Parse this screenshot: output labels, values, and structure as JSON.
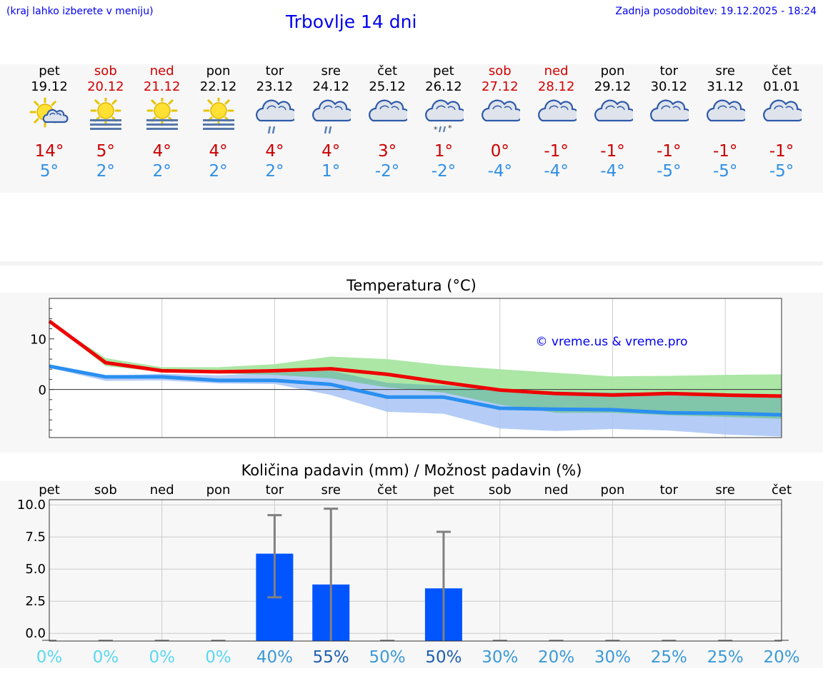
{
  "header": {
    "location_hint": "(kraj lahko izberete v meniju)",
    "title": "Trbovlje 14 dni",
    "updated": "Zadnja posodobitev: 19.12.2025 - 18:24"
  },
  "forecast": [
    {
      "day": "pet",
      "date": "19.12",
      "tmax": "14°",
      "tmin": "5°",
      "icon": "partly-sunny-icon",
      "weekend": false
    },
    {
      "day": "sob",
      "date": "20.12",
      "tmax": "5°",
      "tmin": "2°",
      "icon": "sun-fog-icon",
      "weekend": true
    },
    {
      "day": "ned",
      "date": "21.12",
      "tmax": "4°",
      "tmin": "2°",
      "icon": "sun-fog-icon",
      "weekend": true
    },
    {
      "day": "pon",
      "date": "22.12",
      "tmax": "4°",
      "tmin": "2°",
      "icon": "sun-fog-icon",
      "weekend": false
    },
    {
      "day": "tor",
      "date": "23.12",
      "tmax": "4°",
      "tmin": "2°",
      "icon": "cloud-rain-icon",
      "weekend": false
    },
    {
      "day": "sre",
      "date": "24.12",
      "tmax": "4°",
      "tmin": "1°",
      "icon": "cloud-rain-icon",
      "weekend": false
    },
    {
      "day": "čet",
      "date": "25.12",
      "tmax": "3°",
      "tmin": "-2°",
      "icon": "cloud-icon",
      "weekend": false
    },
    {
      "day": "pet",
      "date": "26.12",
      "tmax": "1°",
      "tmin": "-2°",
      "icon": "cloud-sleet-icon",
      "weekend": false
    },
    {
      "day": "sob",
      "date": "27.12",
      "tmax": "0°",
      "tmin": "-4°",
      "icon": "cloud-icon",
      "weekend": true
    },
    {
      "day": "ned",
      "date": "28.12",
      "tmax": "-1°",
      "tmin": "-4°",
      "icon": "cloud-icon",
      "weekend": true
    },
    {
      "day": "pon",
      "date": "29.12",
      "tmax": "-1°",
      "tmin": "-4°",
      "icon": "cloud-icon",
      "weekend": false
    },
    {
      "day": "tor",
      "date": "30.12",
      "tmax": "-1°",
      "tmin": "-5°",
      "icon": "cloud-icon",
      "weekend": false
    },
    {
      "day": "sre",
      "date": "31.12",
      "tmax": "-1°",
      "tmin": "-5°",
      "icon": "cloud-icon",
      "weekend": false
    },
    {
      "day": "čet",
      "date": "01.01",
      "tmax": "-1°",
      "tmin": "-5°",
      "icon": "cloud-icon",
      "weekend": false
    }
  ],
  "colors": {
    "max_line": "#ee0000",
    "min_line": "#2a8ff0",
    "max_band": "#a8e6a0",
    "min_band": "#a8c4f4",
    "overlap_band": "#7cc4a4",
    "bar": "#0055ff",
    "errorbar": "#808080"
  },
  "chart_data": [
    {
      "type": "line",
      "title": "Temperatura (°C)",
      "watermark": "© vreme.us & vreme.pro",
      "x": [
        0,
        1,
        2,
        3,
        4,
        5,
        6,
        7,
        8,
        9,
        10,
        11,
        12,
        13
      ],
      "ylim": [
        -9.5,
        18
      ],
      "yticks": [
        0,
        10
      ],
      "series": [
        {
          "name": "max",
          "values": [
            13.5,
            5.3,
            3.7,
            3.5,
            3.7,
            4.1,
            3.0,
            1.4,
            -0.1,
            -0.8,
            -1.1,
            -0.8,
            -1.1,
            -1.3
          ]
        },
        {
          "name": "min",
          "values": [
            4.6,
            2.5,
            2.5,
            1.8,
            1.8,
            1.0,
            -1.5,
            -1.5,
            -3.7,
            -3.9,
            -4.0,
            -4.6,
            -4.7,
            -5.0
          ]
        }
      ],
      "bands": [
        {
          "name": "max_range",
          "lower": [
            13.5,
            4.6,
            3.5,
            3.2,
            2.9,
            2.2,
            0.4,
            -0.6,
            -3.0,
            -4.6,
            -4.6,
            -5.1,
            -5.4,
            -5.8
          ],
          "upper": [
            13.5,
            6.2,
            4.4,
            4.4,
            5.0,
            6.5,
            6.0,
            4.8,
            4.0,
            3.3,
            2.6,
            2.7,
            2.9,
            3.0
          ]
        },
        {
          "name": "min_range",
          "lower": [
            4.3,
            1.7,
            1.8,
            1.2,
            1.1,
            -1.1,
            -4.4,
            -4.8,
            -7.7,
            -8.2,
            -7.8,
            -8.1,
            -8.9,
            -9.3
          ],
          "upper": [
            4.8,
            2.7,
            3.1,
            2.8,
            3.3,
            3.7,
            1.3,
            0.8,
            -0.1,
            -0.4,
            -0.6,
            -0.6,
            -1.1,
            -1.5
          ]
        }
      ]
    },
    {
      "type": "bar",
      "title": "Količina padavin (mm) / Možnost padavin (%)",
      "categories": [
        "pet",
        "sob",
        "ned",
        "pon",
        "tor",
        "sre",
        "čet",
        "pet",
        "sob",
        "ned",
        "pon",
        "tor",
        "sre",
        "čet"
      ],
      "values": [
        0,
        0,
        0,
        0,
        6.2,
        3.8,
        0,
        3.5,
        0,
        0,
        0,
        0,
        0,
        0
      ],
      "error_low": [
        0,
        0,
        0,
        0,
        2.8,
        0,
        0,
        0,
        0,
        0,
        0,
        0,
        0,
        0
      ],
      "error_high": [
        0,
        0,
        0,
        0,
        9.2,
        9.7,
        0,
        7.9,
        0,
        0,
        0,
        0,
        0,
        0
      ],
      "ylim": [
        -0.6,
        10.4
      ],
      "yticks": [
        "0.0",
        "2.5",
        "5.0",
        "7.5",
        "10.0"
      ],
      "probability": [
        "0%",
        "0%",
        "0%",
        "0%",
        "40%",
        "55%",
        "50%",
        "50%",
        "30%",
        "20%",
        "30%",
        "25%",
        "25%",
        "20%"
      ],
      "probability_colors": [
        "#5ad8f0",
        "#5ad8f0",
        "#5ad8f0",
        "#5ad8f0",
        "#3a9ad8",
        "#1f5fb0",
        "#3a9ad8",
        "#1f5fb0",
        "#3a9ad8",
        "#3a9ad8",
        "#3a9ad8",
        "#3a9ad8",
        "#3a9ad8",
        "#3a9ad8"
      ]
    }
  ]
}
